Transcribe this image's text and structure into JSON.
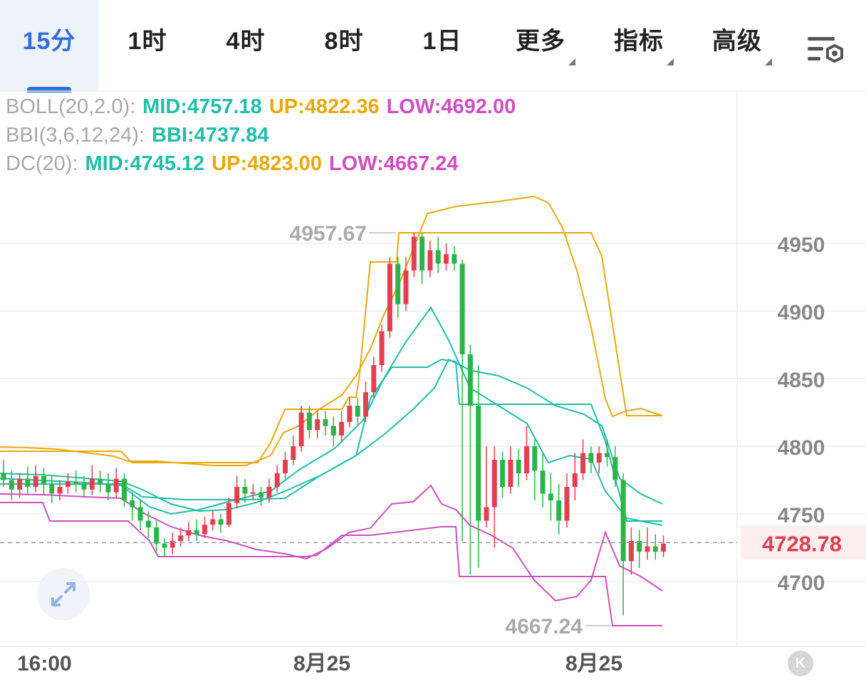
{
  "tabs": [
    {
      "label": "15分",
      "active": true
    },
    {
      "label": "1时"
    },
    {
      "label": "4时"
    },
    {
      "label": "8时"
    },
    {
      "label": "1日"
    },
    {
      "label": "更多",
      "dropdown": true
    },
    {
      "label": "指标",
      "dropdown": true
    },
    {
      "label": "高级",
      "dropdown": true
    }
  ],
  "legend": {
    "boll": {
      "name": "BOLL(20,2.0):",
      "mid": "MID:4757.18",
      "up": "UP:4822.36",
      "low": "LOW:4692.00"
    },
    "bbi": {
      "name": "BBI(3,6,12,24):",
      "bbi": "BBI:4737.84"
    },
    "dc": {
      "name": "DC(20):",
      "mid": "MID:4745.12",
      "up": "UP:4823.00",
      "low": "LOW:4667.24"
    }
  },
  "price_marks": {
    "high": "4957.67",
    "low": "4667.24",
    "current": "4728.78"
  },
  "icons": {
    "settings": "chart-settings-icon",
    "expand": "expand-icon",
    "scroll": "scroll-to-latest-icon",
    "scroll_glyph": "K"
  },
  "colors": {
    "up": "#e04050",
    "down": "#2db34a",
    "boll": "#e9a90d",
    "bbi": "#1fbfa7",
    "dc_low": "#d04fc0",
    "active": "#2f6fd8"
  },
  "chart_data": {
    "type": "candlestick",
    "y_ticks": [
      4950,
      4900,
      4850,
      4800,
      4750,
      4700
    ],
    "x_labels": [
      "16:00",
      "8月25",
      "8月25"
    ],
    "ylim": [
      4640,
      4990
    ],
    "current_price": 4728.78,
    "candles": [
      [
        4780,
        4775,
        4790,
        4770
      ],
      [
        4775,
        4768,
        4782,
        4760
      ],
      [
        4768,
        4776,
        4780,
        4762
      ],
      [
        4776,
        4770,
        4785,
        4765
      ],
      [
        4770,
        4778,
        4786,
        4766
      ],
      [
        4778,
        4772,
        4784,
        4764
      ],
      [
        4772,
        4765,
        4778,
        4758
      ],
      [
        4765,
        4770,
        4775,
        4760
      ],
      [
        4770,
        4774,
        4780,
        4765
      ],
      [
        4774,
        4772,
        4782,
        4766
      ],
      [
        4772,
        4768,
        4778,
        4762
      ],
      [
        4768,
        4776,
        4786,
        4764
      ],
      [
        4776,
        4772,
        4782,
        4766
      ],
      [
        4772,
        4766,
        4780,
        4760
      ],
      [
        4766,
        4776,
        4784,
        4762
      ],
      [
        4776,
        4760,
        4780,
        4755
      ],
      [
        4760,
        4755,
        4766,
        4745
      ],
      [
        4755,
        4745,
        4760,
        4738
      ],
      [
        4745,
        4740,
        4752,
        4732
      ],
      [
        4740,
        4728,
        4745,
        4722
      ],
      [
        4728,
        4725,
        4732,
        4718
      ],
      [
        4725,
        4730,
        4736,
        4720
      ],
      [
        4730,
        4734,
        4740,
        4726
      ],
      [
        4734,
        4738,
        4744,
        4730
      ],
      [
        4738,
        4735,
        4746,
        4730
      ],
      [
        4735,
        4742,
        4748,
        4732
      ],
      [
        4742,
        4746,
        4752,
        4738
      ],
      [
        4746,
        4742,
        4750,
        4736
      ],
      [
        4742,
        4758,
        4762,
        4740
      ],
      [
        4758,
        4770,
        4778,
        4754
      ],
      [
        4770,
        4765,
        4776,
        4758
      ],
      [
        4765,
        4766,
        4772,
        4760
      ],
      [
        4766,
        4762,
        4770,
        4756
      ],
      [
        4762,
        4770,
        4776,
        4758
      ],
      [
        4770,
        4780,
        4786,
        4766
      ],
      [
        4780,
        4790,
        4796,
        4776
      ],
      [
        4790,
        4800,
        4808,
        4786
      ],
      [
        4800,
        4825,
        4830,
        4796
      ],
      [
        4825,
        4812,
        4830,
        4806
      ],
      [
        4812,
        4820,
        4826,
        4806
      ],
      [
        4820,
        4815,
        4826,
        4808
      ],
      [
        4815,
        4808,
        4822,
        4800
      ],
      [
        4808,
        4818,
        4826,
        4804
      ],
      [
        4818,
        4830,
        4836,
        4814
      ],
      [
        4830,
        4822,
        4836,
        4816
      ],
      [
        4822,
        4840,
        4848,
        4818
      ],
      [
        4840,
        4860,
        4866,
        4836
      ],
      [
        4860,
        4885,
        4890,
        4855
      ],
      [
        4885,
        4935,
        4940,
        4880
      ],
      [
        4935,
        4905,
        4940,
        4895
      ],
      [
        4905,
        4930,
        4940,
        4900
      ],
      [
        4930,
        4955,
        4958,
        4925
      ],
      [
        4955,
        4930,
        4958,
        4920
      ],
      [
        4930,
        4945,
        4952,
        4925
      ],
      [
        4945,
        4935,
        4955,
        4928
      ],
      [
        4935,
        4942,
        4950,
        4930
      ],
      [
        4942,
        4935,
        4948,
        4930
      ],
      [
        4935,
        4868,
        4938,
        4730
      ],
      [
        4868,
        4830,
        4875,
        4705
      ],
      [
        4830,
        4745,
        4860,
        4710
      ],
      [
        4745,
        4755,
        4800,
        4740
      ],
      [
        4755,
        4790,
        4800,
        4725
      ],
      [
        4790,
        4770,
        4796,
        4762
      ],
      [
        4770,
        4790,
        4800,
        4765
      ],
      [
        4790,
        4780,
        4798,
        4770
      ],
      [
        4780,
        4800,
        4815,
        4775
      ],
      [
        4800,
        4782,
        4805,
        4760
      ],
      [
        4782,
        4765,
        4795,
        4755
      ],
      [
        4765,
        4760,
        4780,
        4745
      ],
      [
        4760,
        4745,
        4772,
        4735
      ],
      [
        4745,
        4770,
        4780,
        4740
      ],
      [
        4770,
        4780,
        4795,
        4760
      ],
      [
        4780,
        4795,
        4805,
        4775
      ],
      [
        4795,
        4788,
        4800,
        4780
      ],
      [
        4788,
        4795,
        4800,
        4780
      ],
      [
        4795,
        4792,
        4805,
        4785
      ],
      [
        4792,
        4775,
        4800,
        4770
      ],
      [
        4775,
        4715,
        4780,
        4675
      ],
      [
        4715,
        4730,
        4740,
        4705
      ],
      [
        4730,
        4722,
        4738,
        4710
      ],
      [
        4722,
        4726,
        4740,
        4716
      ],
      [
        4726,
        4722,
        4735,
        4716
      ],
      [
        4722,
        4728,
        4734,
        4718
      ]
    ]
  }
}
